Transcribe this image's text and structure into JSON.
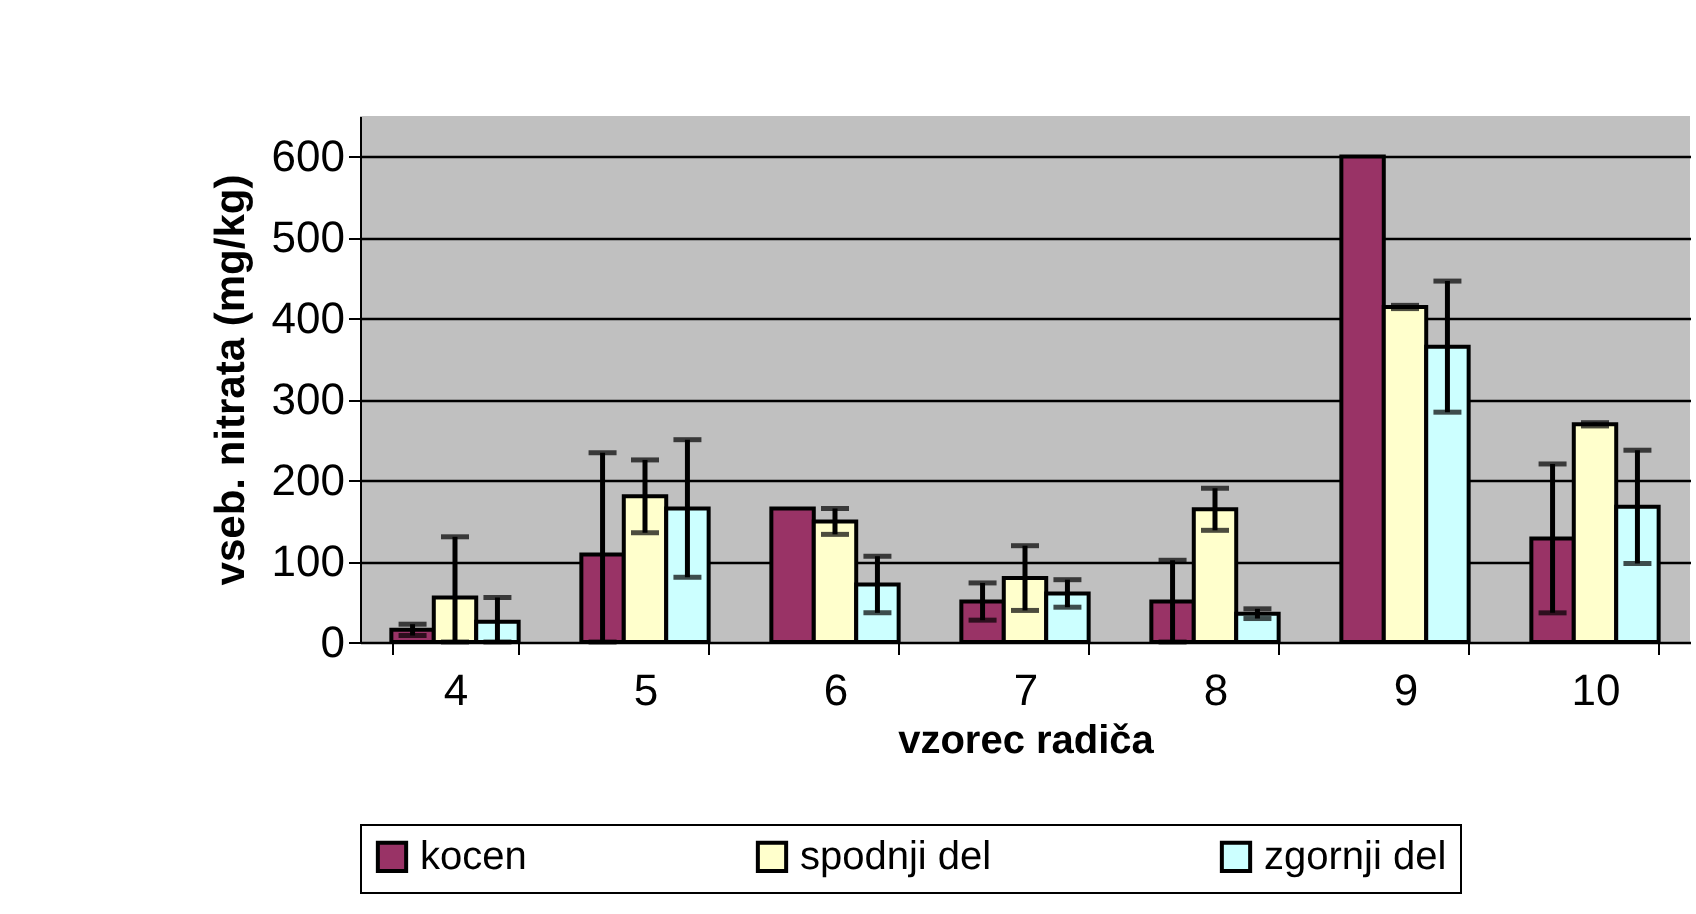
{
  "chart_data": {
    "type": "bar",
    "xlabel": "vzorec radiča",
    "ylabel": "vseb. nitrata (mg/kg)",
    "categories": [
      "4",
      "5",
      "6",
      "7",
      "8",
      "9",
      "10"
    ],
    "series": [
      {
        "name": "kocen",
        "color": "#993366",
        "values": [
          15,
          108,
          165,
          50,
          50,
          600,
          128
        ],
        "errors": [
          7,
          [
            0,
            234
          ],
          null,
          23,
          [
            0,
            101
          ],
          null,
          92
        ]
      },
      {
        "name": "spodnji del",
        "color": "#ffffcc",
        "values": [
          55,
          180,
          149,
          79,
          164,
          414,
          269
        ],
        "errors": [
          [
            0,
            130
          ],
          45,
          16,
          40,
          26,
          2,
          2
        ]
      },
      {
        "name": "zgornji del",
        "color": "#ccffff",
        "values": [
          25,
          165,
          71,
          60,
          35,
          365,
          167
        ],
        "errors": [
          [
            0,
            55
          ],
          85,
          35,
          17,
          6,
          81,
          70
        ]
      }
    ],
    "ylim": [
      0,
      650
    ],
    "yticks": [
      0,
      100,
      200,
      300,
      400,
      500,
      600
    ],
    "grid": "y",
    "legend": "bottom"
  }
}
